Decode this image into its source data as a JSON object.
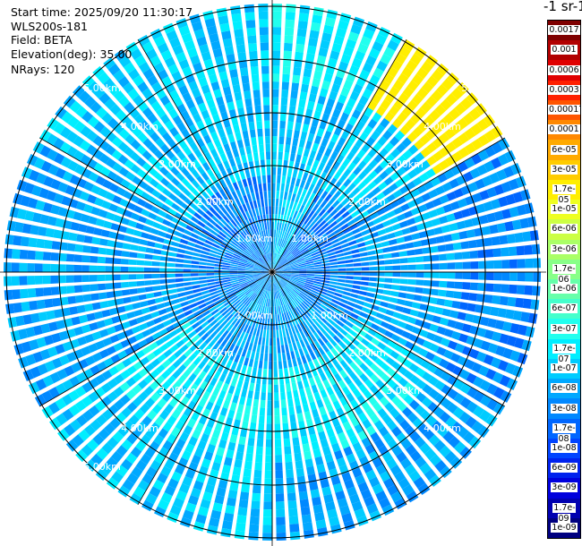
{
  "info": {
    "start_time": "Start time: 2025/09/20 11:30:17",
    "instrument": "WLS200s-181",
    "field": "Field: BETA",
    "elevation": "Elevation(deg): 35.00",
    "nrays": "NRays: 120"
  },
  "colorbar": {
    "title": "-1 sr-1",
    "labels": [
      "0.0017",
      "0.001",
      "0.0006",
      "0.0003",
      "0.00017",
      "0.0001",
      "6e-05",
      "3e-05",
      "1.7e-05",
      "1e-05",
      "6e-06",
      "3e-06",
      "1.7e-06",
      "1e-06",
      "6e-07",
      "3e-07",
      "1.7e-07",
      "1e-07",
      "6e-08",
      "3e-08",
      "1.7e-08",
      "1e-08",
      "6e-09",
      "3e-09",
      "1.7e-09",
      "1e-09"
    ],
    "colors": [
      "#7f0000",
      "#b20000",
      "#e00000",
      "#ff2000",
      "#ff5500",
      "#ff8800",
      "#ffaa00",
      "#ffcc00",
      "#ffee00",
      "#eeff22",
      "#ccff44",
      "#aaff66",
      "#88ff88",
      "#66ffaa",
      "#44ffcc",
      "#22ffee",
      "#00eeff",
      "#00ccff",
      "#00a8ff",
      "#0088ff",
      "#0066ff",
      "#0044ff",
      "#0022ee",
      "#0000dd",
      "#0000b0",
      "#000080"
    ]
  },
  "range_labels": {
    "ring_1": "1.00km",
    "ring_2": "2.00km",
    "ring_3": "3.00km",
    "ring_4": "4.00km",
    "ring_5": "5.00km"
  },
  "chart_data": {
    "type": "heatmap",
    "projection": "polar (PPI scan)",
    "field": "BETA",
    "elevation_deg": 35.0,
    "nrays": 120,
    "range_rings_km": [
      1,
      2,
      3,
      4,
      5
    ],
    "color_scale": "log",
    "color_range": [
      1e-09,
      0.0017
    ],
    "rays": [
      {
        "az_from": 0,
        "az_to": 30,
        "inner": "1e-07",
        "mid": "1e-07",
        "outer": "1.7e-07"
      },
      {
        "az_from": 30,
        "az_to": 60,
        "inner": "3e-08",
        "mid": "1e-07",
        "outer": "1.7e-05"
      },
      {
        "az_from": 60,
        "az_to": 120,
        "inner": "3e-08",
        "mid": "6e-08",
        "outer": "3e-08"
      },
      {
        "az_from": 120,
        "az_to": 180,
        "inner": "6e-08",
        "mid": "1.7e-07",
        "outer": "6e-08"
      },
      {
        "az_from": 180,
        "az_to": 240,
        "inner": "6e-08",
        "mid": "1.7e-07",
        "outer": "1e-07"
      },
      {
        "az_from": 240,
        "az_to": 300,
        "inner": "3e-08",
        "mid": "6e-08",
        "outer": "6e-08"
      },
      {
        "az_from": 300,
        "az_to": 360,
        "inner": "3e-08",
        "mid": "1e-07",
        "outer": "1e-07"
      }
    ]
  }
}
